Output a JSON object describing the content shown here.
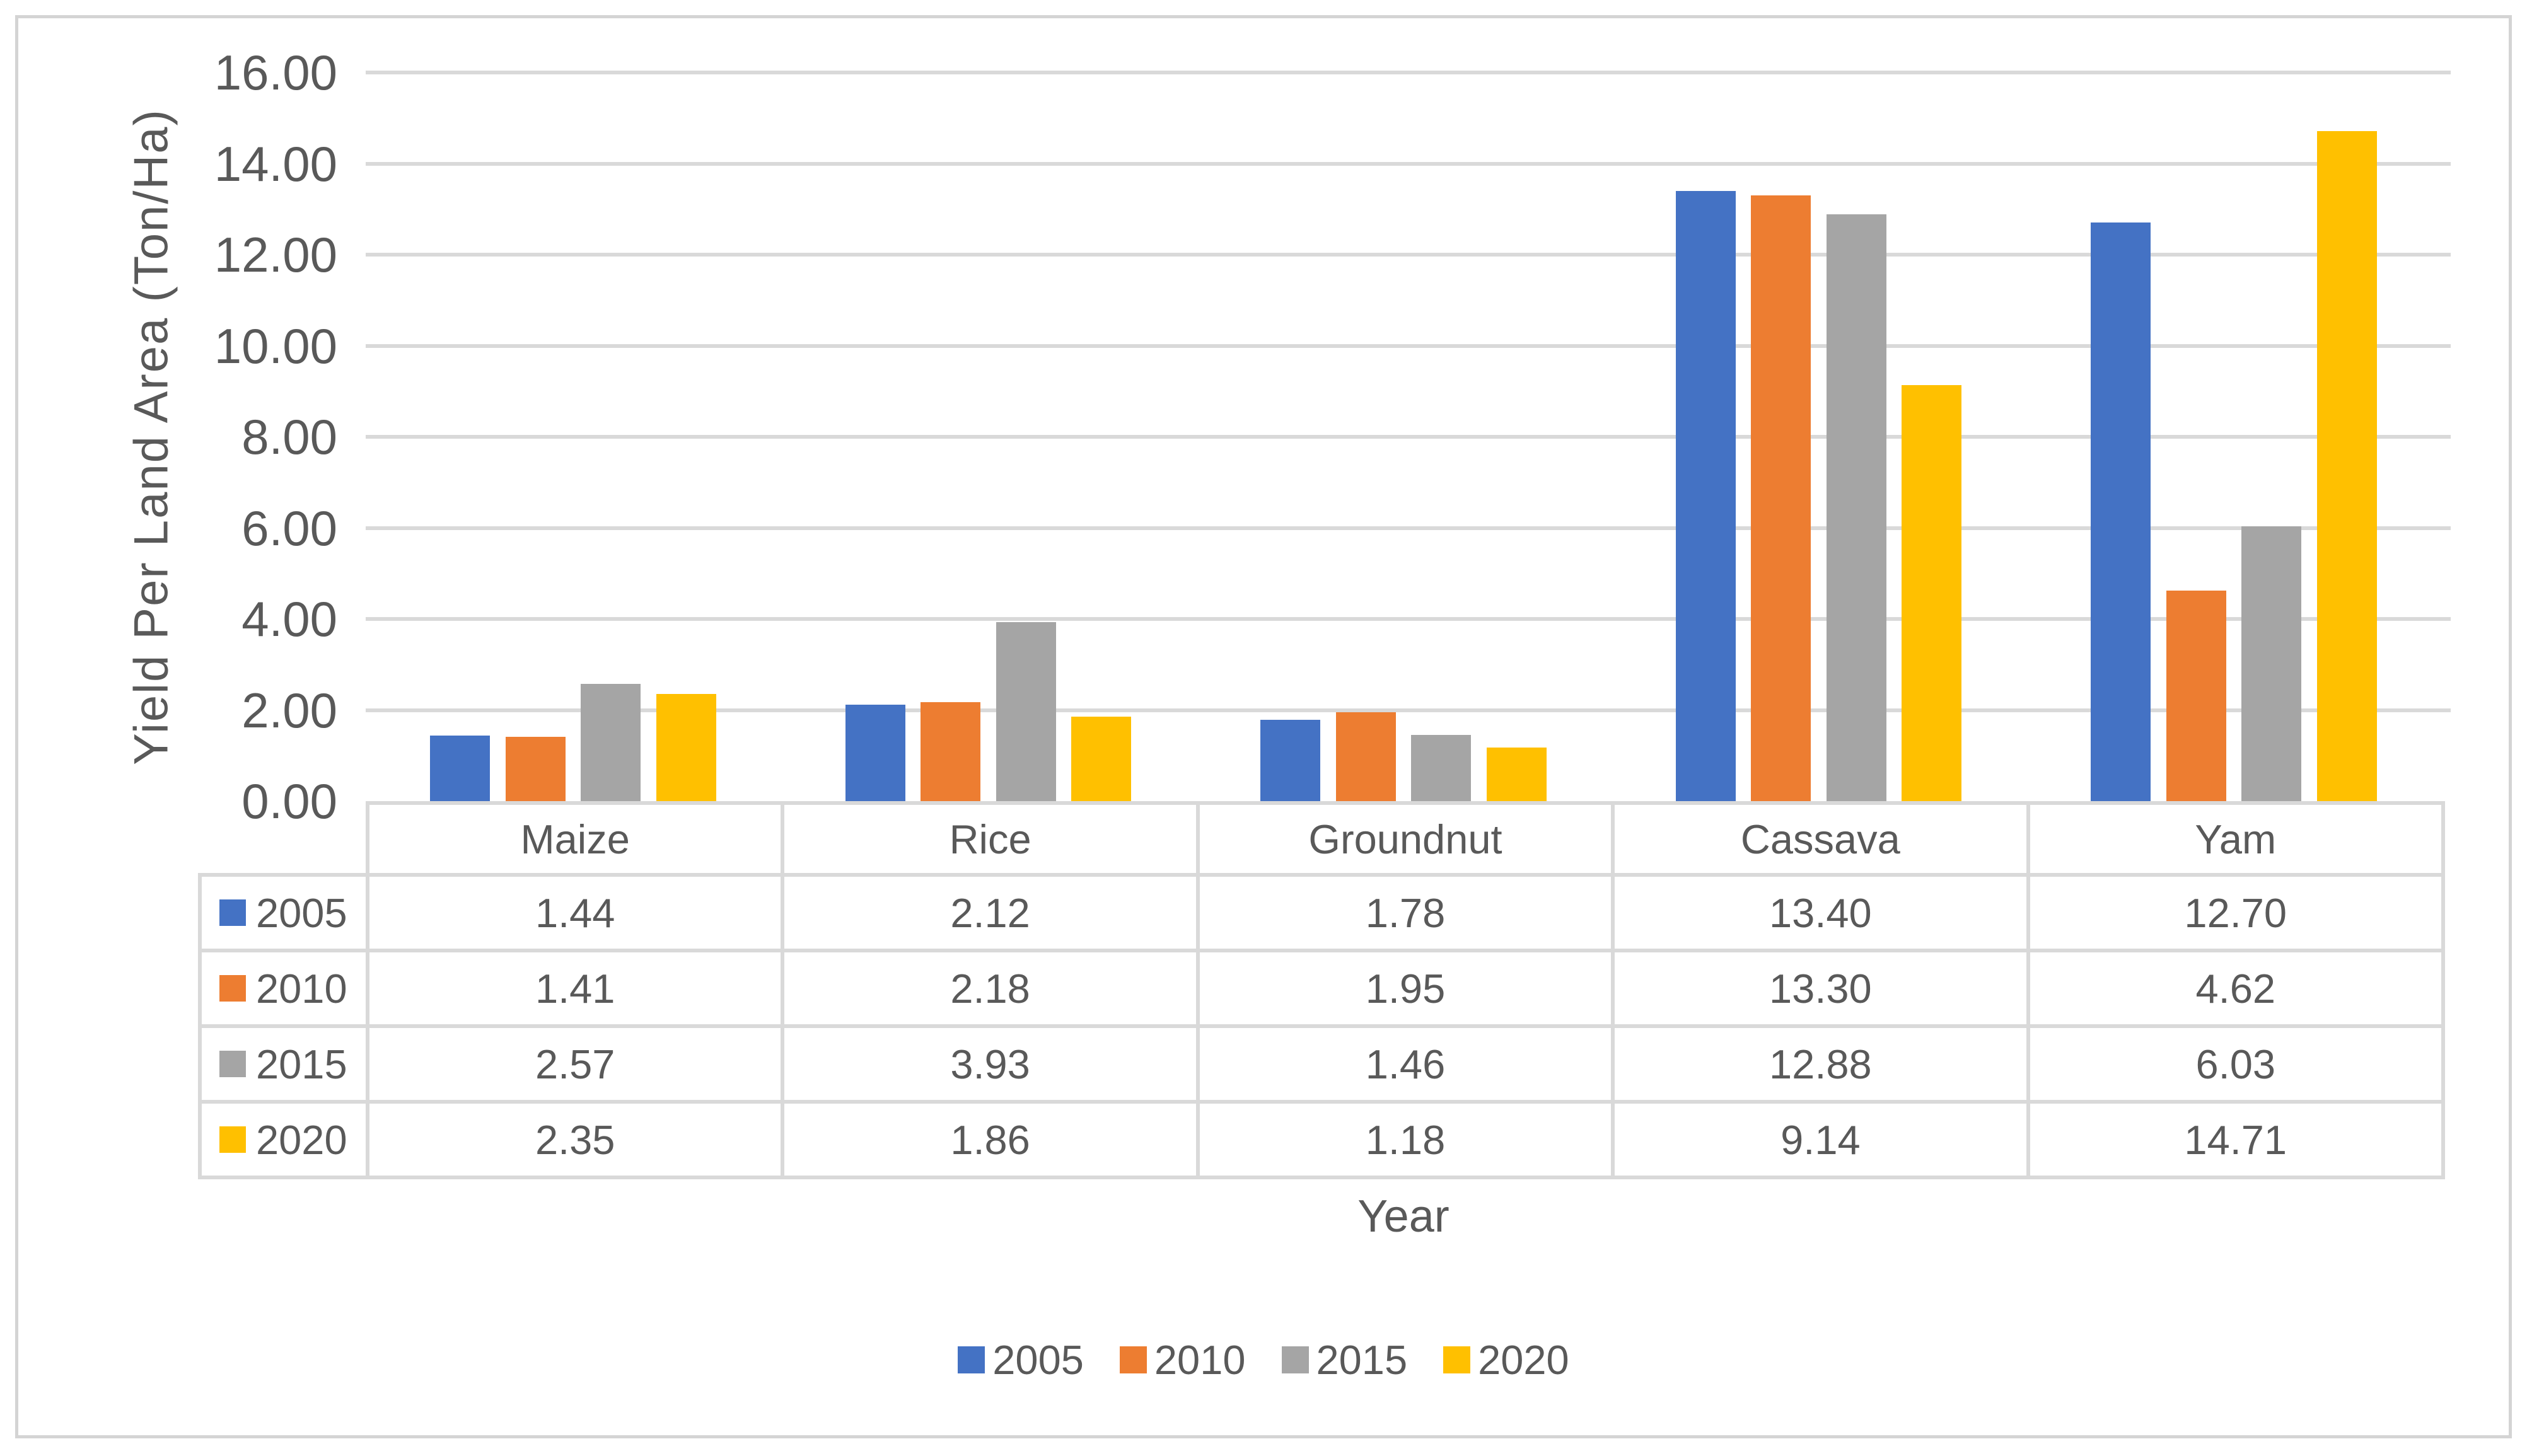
{
  "figure": {
    "y_axis_title": "Yield Per Land Area (Ton/Ha)",
    "x_axis_title": "Year"
  },
  "chart_data": {
    "type": "bar",
    "title": "",
    "categories": [
      "Maize",
      "Rice",
      "Groundnut",
      "Cassava",
      "Yam"
    ],
    "series": [
      {
        "name": "2005",
        "color": "#4472C4",
        "values": [
          1.44,
          2.12,
          1.78,
          13.4,
          12.7
        ]
      },
      {
        "name": "2010",
        "color": "#ED7D31",
        "values": [
          1.41,
          2.18,
          1.95,
          13.3,
          4.62
        ]
      },
      {
        "name": "2015",
        "color": "#A5A5A5",
        "values": [
          2.57,
          3.93,
          1.46,
          12.88,
          6.03
        ]
      },
      {
        "name": "2020",
        "color": "#FFC000",
        "values": [
          2.35,
          1.86,
          1.18,
          9.14,
          14.71
        ]
      }
    ],
    "xlabel": "Year",
    "ylabel": "Yield Per Land Area (Ton/Ha)",
    "ylim": [
      0,
      16
    ],
    "y_ticks": [
      0,
      2,
      4,
      6,
      8,
      10,
      12,
      14,
      16
    ],
    "y_tick_labels": [
      "0.00",
      "2.00",
      "4.00",
      "6.00",
      "8.00",
      "10.00",
      "12.00",
      "14.00",
      "16.00"
    ],
    "grid": true,
    "legend_entries": [
      "2005",
      "2010",
      "2015",
      "2020"
    ],
    "legend_position": "bottom-center",
    "show_data_table": true,
    "value_decimals": 2
  },
  "style": {
    "gridline_color": "#D9D9D9",
    "table_border_color": "#D9D9D9",
    "text_color": "#595959",
    "frame_border_color": "#D4D4D4",
    "background_color": "#FFFFFF"
  }
}
